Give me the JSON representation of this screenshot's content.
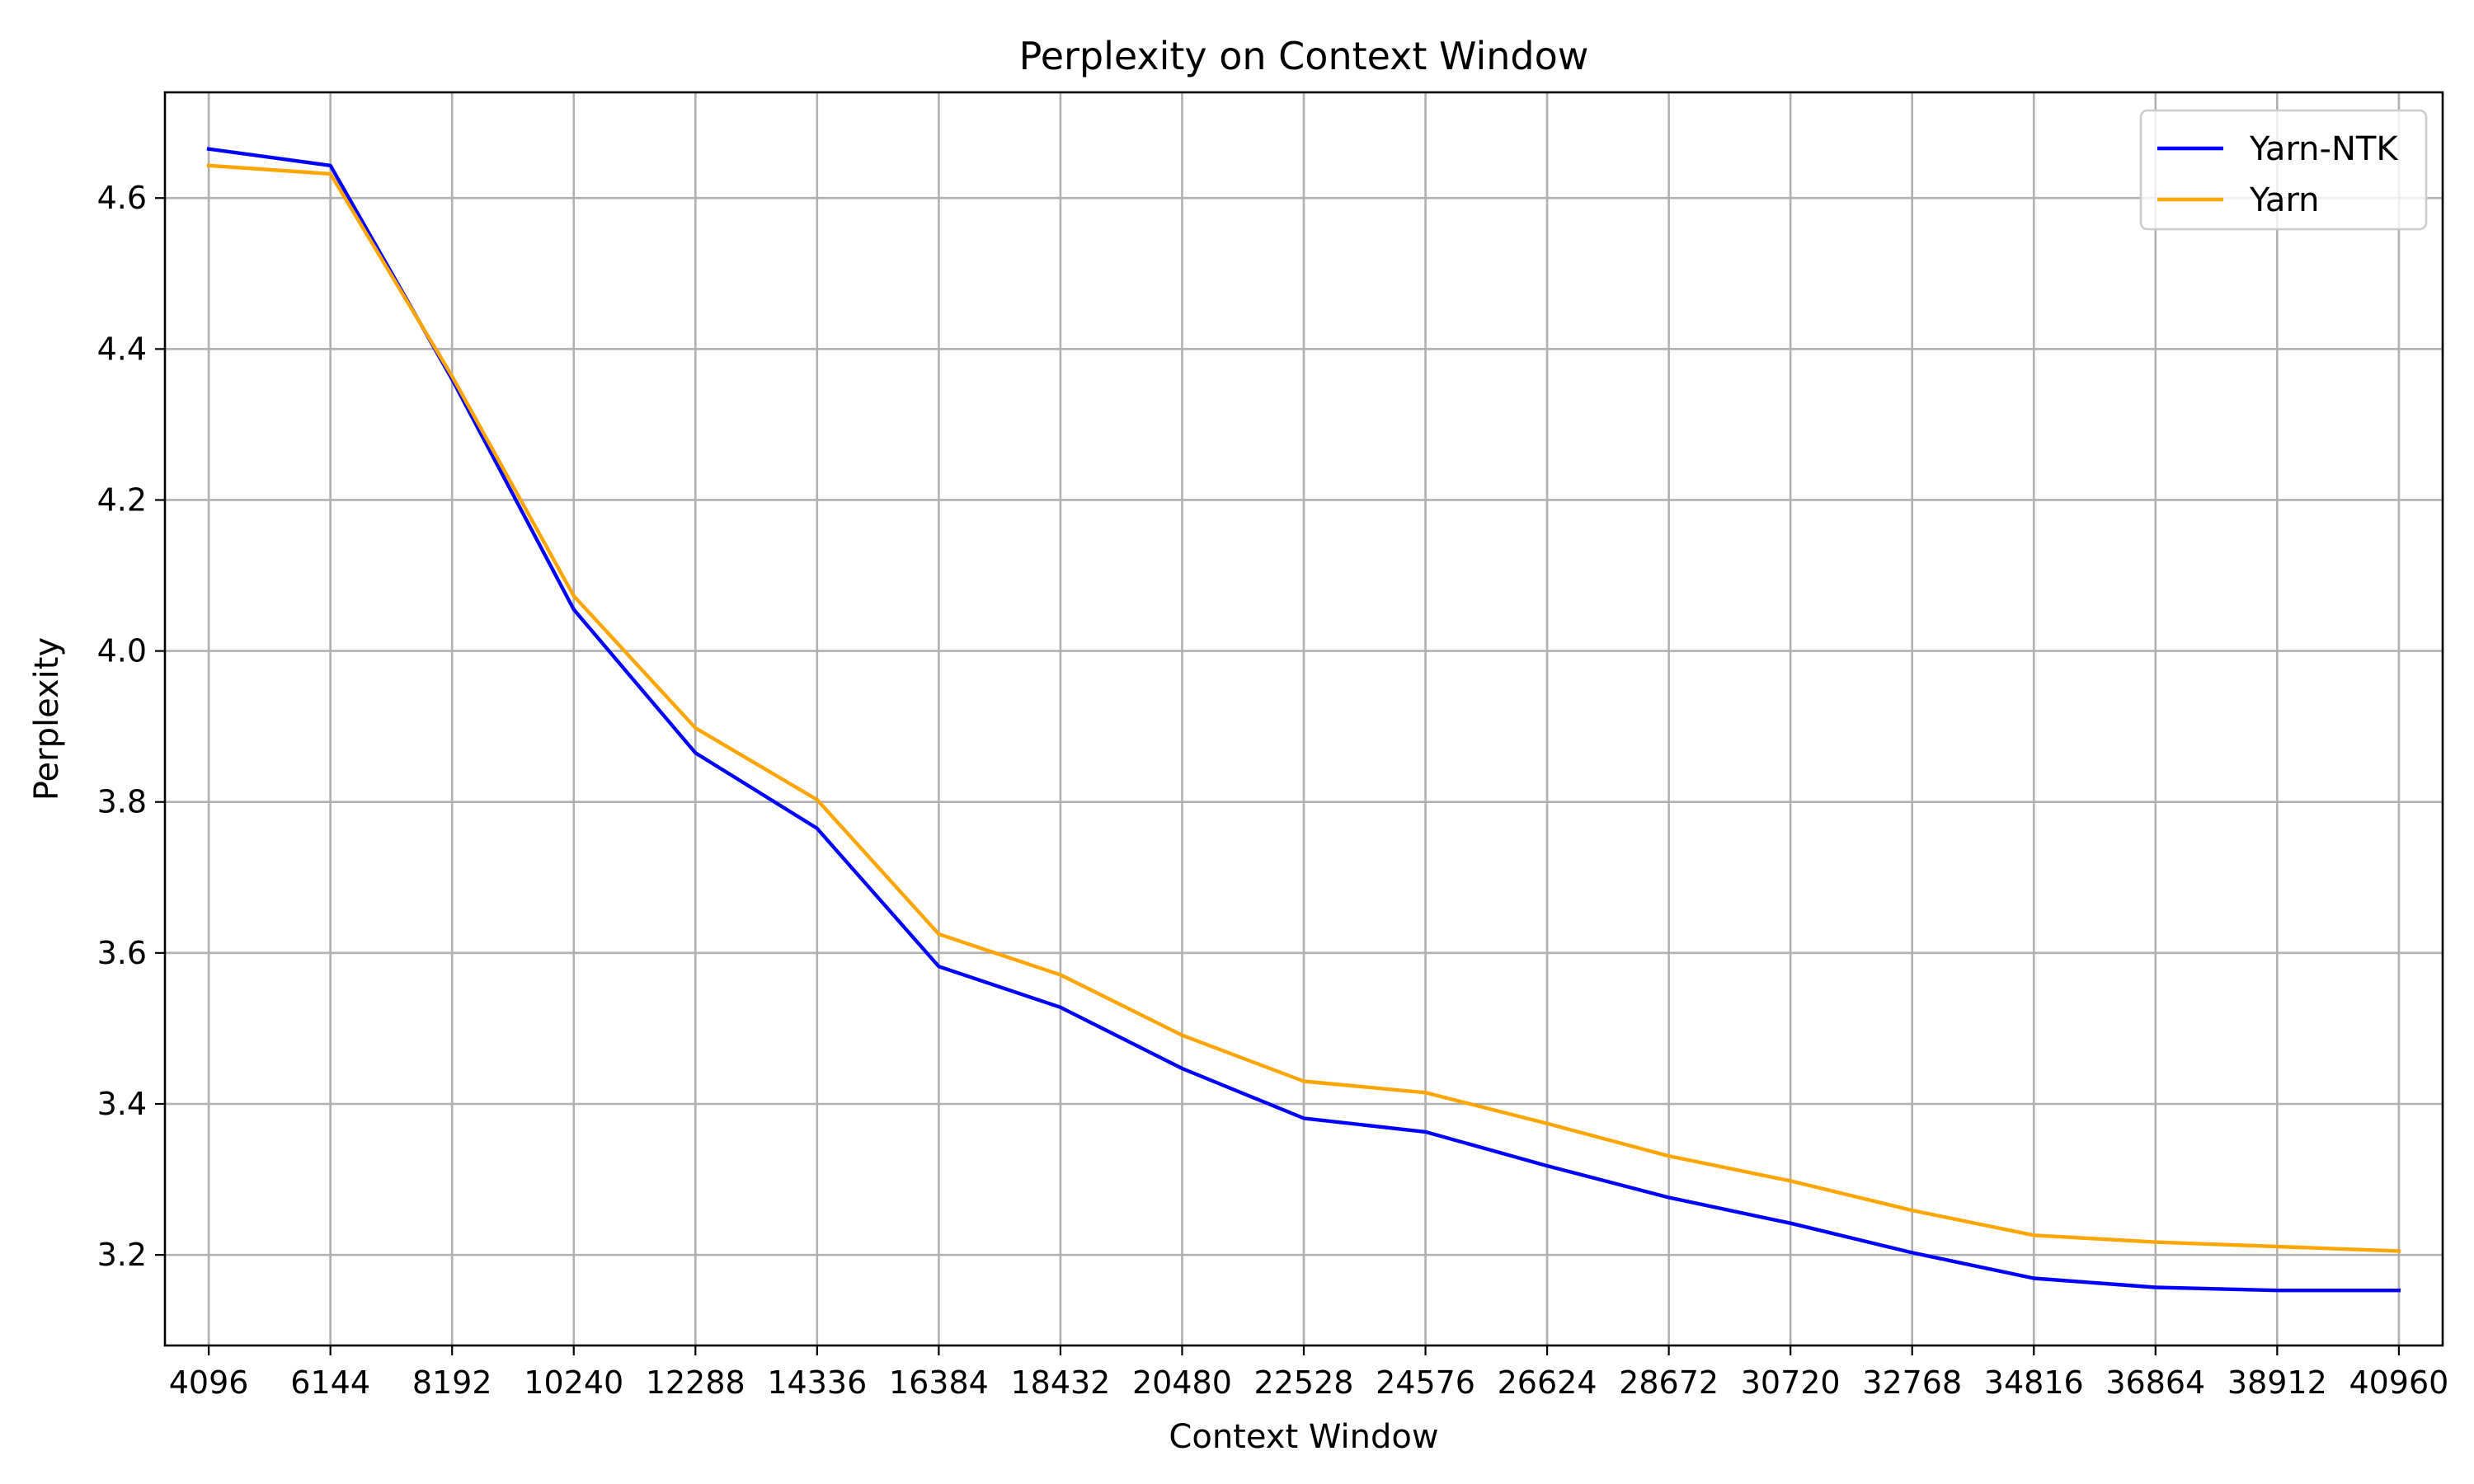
{
  "chart_data": {
    "type": "line",
    "title": "Perplexity on Context Window",
    "xlabel": "Context Window",
    "ylabel": "Perplexity",
    "x": [
      4096,
      6144,
      8192,
      10240,
      12288,
      14336,
      16384,
      18432,
      20480,
      22528,
      24576,
      26624,
      28672,
      30720,
      32768,
      34816,
      36864,
      38912,
      40960
    ],
    "xticks": [
      "4096",
      "6144",
      "8192",
      "10240",
      "12288",
      "14336",
      "16384",
      "18432",
      "20480",
      "22528",
      "24576",
      "26624",
      "28672",
      "30720",
      "32768",
      "34816",
      "36864",
      "38912",
      "40960"
    ],
    "yticks": [
      3.2,
      3.4,
      3.6,
      3.8,
      4.0,
      4.2,
      4.4,
      4.6
    ],
    "ytick_labels": [
      "3.2",
      "3.4",
      "3.6",
      "3.8",
      "4.0",
      "4.2",
      "4.4",
      "4.6"
    ],
    "xlim": [
      3358.72,
      41697.28
    ],
    "ylim": [
      3.08,
      4.74
    ],
    "grid": true,
    "legend_position": "top-right",
    "series": [
      {
        "name": "Yarn-NTK",
        "color": "#0000ff",
        "values": [
          4.665,
          4.643,
          4.36,
          4.055,
          3.865,
          3.765,
          3.582,
          3.528,
          3.447,
          3.381,
          3.363,
          3.318,
          3.276,
          3.242,
          3.203,
          3.169,
          3.157,
          3.153,
          3.153
        ]
      },
      {
        "name": "Yarn",
        "color": "#ffa500",
        "values": [
          4.643,
          4.632,
          4.364,
          4.073,
          3.898,
          3.803,
          3.625,
          3.571,
          3.491,
          3.43,
          3.415,
          3.374,
          3.331,
          3.298,
          3.259,
          3.226,
          3.217,
          3.211,
          3.205
        ]
      }
    ]
  }
}
